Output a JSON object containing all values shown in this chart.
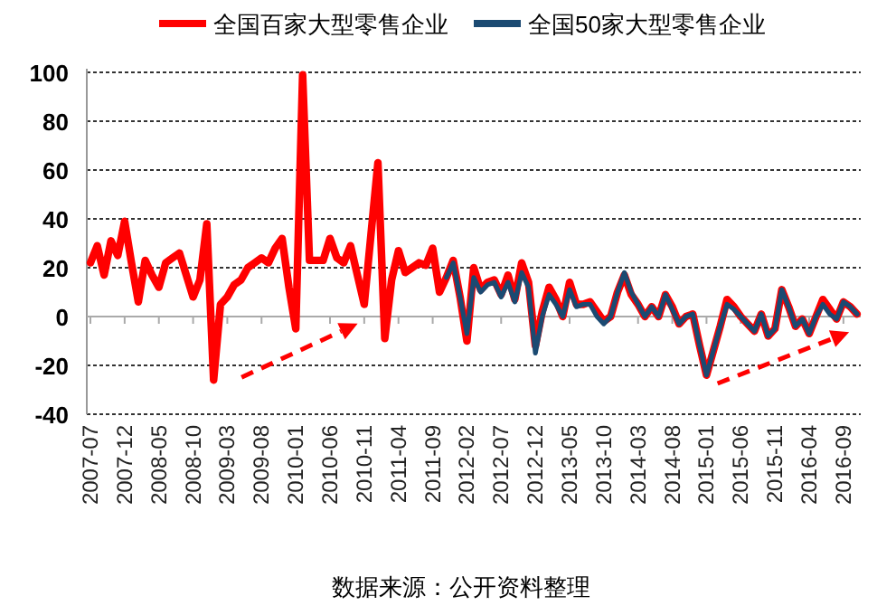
{
  "chart_data": {
    "type": "line",
    "categories": [
      "2007-07",
      null,
      null,
      null,
      null,
      "2007-12",
      null,
      null,
      null,
      null,
      "2008-05",
      null,
      null,
      null,
      null,
      "2008-10",
      null,
      null,
      null,
      null,
      "2009-03",
      null,
      null,
      null,
      null,
      "2009-08",
      null,
      null,
      null,
      null,
      "2010-01",
      null,
      null,
      null,
      null,
      "2010-06",
      null,
      null,
      null,
      null,
      "2010-11",
      null,
      null,
      null,
      null,
      "2011-04",
      null,
      null,
      null,
      null,
      "2011-09",
      null,
      null,
      null,
      null,
      "2012-02",
      null,
      null,
      null,
      null,
      "2012-07",
      null,
      null,
      null,
      null,
      "2012-12",
      null,
      null,
      null,
      null,
      "2013-05",
      null,
      null,
      null,
      null,
      "2013-10",
      null,
      null,
      null,
      null,
      "2014-03",
      null,
      null,
      null,
      null,
      "2014-08",
      null,
      null,
      null,
      null,
      "2015-01",
      null,
      null,
      null,
      null,
      "2015-06",
      null,
      null,
      null,
      null,
      "2015-11",
      null,
      null,
      null,
      null,
      "2016-04",
      null,
      null,
      null,
      null,
      "2016-09",
      null,
      null
    ],
    "series": [
      {
        "name": "全国百家大型零售企业",
        "color": "#ff0000",
        "values": [
          22,
          29,
          17,
          31,
          25,
          39,
          22,
          6,
          23,
          17,
          12,
          22,
          24,
          26,
          17,
          8,
          15,
          38,
          -26,
          5,
          8,
          13,
          15,
          20,
          22,
          24,
          22,
          28,
          32,
          12,
          -5,
          99,
          23,
          23,
          23,
          32,
          24,
          22,
          29,
          17,
          5,
          34,
          63,
          -9,
          15,
          27,
          18,
          20,
          22,
          21,
          28,
          10,
          16,
          23,
          8,
          -10,
          20,
          11,
          14,
          15,
          9,
          17,
          7,
          22,
          14,
          -12,
          2,
          12,
          7,
          0,
          14,
          5,
          5,
          6,
          2,
          -2,
          0,
          10,
          17,
          9,
          5,
          0,
          4,
          0,
          9,
          4,
          -3,
          0,
          1,
          -12,
          -24,
          -14,
          -4,
          7,
          4,
          0,
          -3,
          -6,
          1,
          -8,
          -5,
          11,
          4,
          -4,
          -1,
          -7,
          0,
          7,
          3,
          -1,
          6,
          4,
          1
        ]
      },
      {
        "name": "全国50家大型零售企业",
        "color": "#1b4a72",
        "values": [
          null,
          null,
          null,
          null,
          null,
          null,
          null,
          null,
          null,
          null,
          null,
          null,
          null,
          null,
          null,
          null,
          null,
          null,
          null,
          null,
          null,
          null,
          null,
          null,
          null,
          null,
          null,
          null,
          null,
          null,
          null,
          null,
          null,
          null,
          null,
          null,
          null,
          null,
          null,
          null,
          null,
          null,
          null,
          null,
          null,
          null,
          null,
          null,
          null,
          null,
          null,
          null,
          16,
          22,
          8,
          -7,
          16,
          10,
          13,
          14,
          8,
          14,
          6,
          18,
          12,
          -15,
          0,
          9,
          5,
          0,
          11,
          4,
          5,
          5,
          0,
          -3,
          0,
          10,
          18,
          10,
          5,
          0,
          4,
          0,
          9,
          3,
          -3,
          0,
          1,
          -12,
          -24,
          -14,
          -4,
          5,
          3,
          0,
          -3,
          -6,
          1,
          -8,
          -5,
          11,
          4,
          -4,
          -1,
          -7,
          0,
          5,
          1,
          -1,
          6,
          4,
          1
        ]
      }
    ],
    "ylim": [
      -40,
      100
    ],
    "yticks": [
      -40,
      -20,
      0,
      20,
      40,
      60,
      80,
      100
    ],
    "grid": "y",
    "legend": "top",
    "line_style": "solid",
    "annotations": [
      "数据来源：公开资料整理"
    ]
  }
}
